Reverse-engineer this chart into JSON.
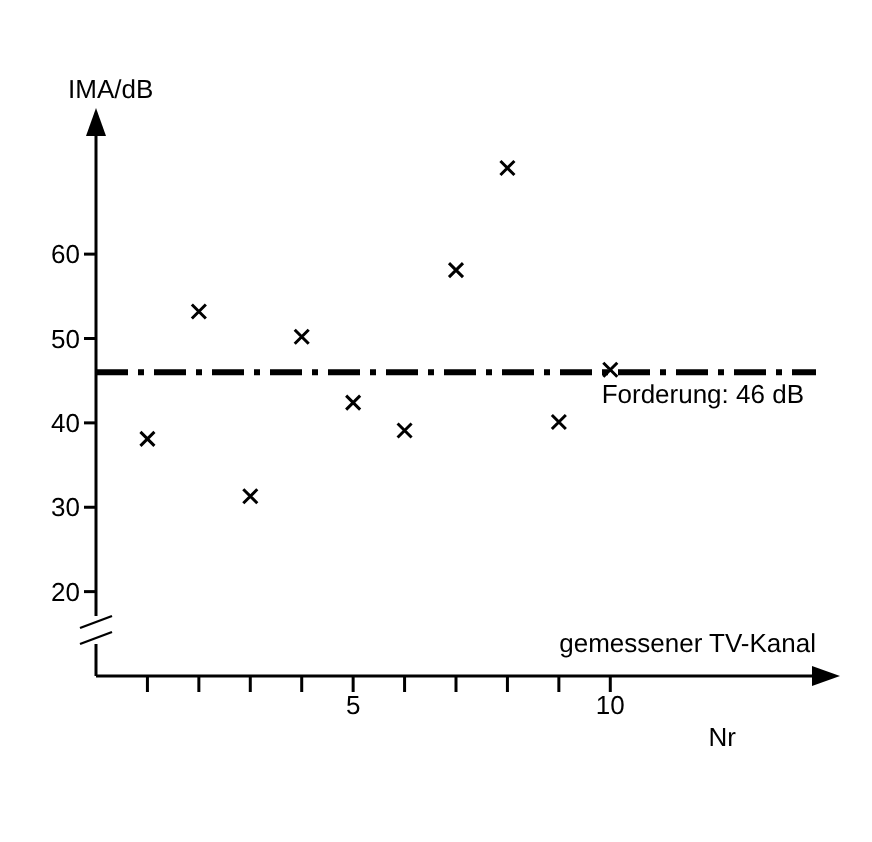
{
  "chart_data": {
    "type": "scatter",
    "ylabel": "IMA/dB",
    "xlabel": "Nr",
    "annotations": [
      "gemessener TV-Kanal"
    ],
    "x": [
      1,
      2,
      3,
      4,
      5,
      6,
      7,
      8,
      9,
      10
    ],
    "series": [
      {
        "color": "#000000",
        "values": [
          38.1,
          53.2,
          31.3,
          50.2,
          42.4,
          39.1,
          58.1,
          70.2,
          40.1,
          46.3
        ]
      }
    ],
    "xlim": [
      0,
      14
    ],
    "xticks": [
      {
        "value": 1,
        "label": null
      },
      {
        "value": 2,
        "label": null
      },
      {
        "value": 3,
        "label": null
      },
      {
        "value": 4,
        "label": null
      },
      5,
      {
        "value": 6,
        "label": null
      },
      {
        "value": 7,
        "label": null
      },
      {
        "value": 8,
        "label": null
      },
      {
        "value": 9,
        "label": null
      },
      10
    ],
    "ylim": [
      10,
      74
    ],
    "yticks": [
      20,
      30,
      40,
      50,
      60
    ],
    "ref_lines": [
      {
        "axis": "y",
        "value": 46,
        "label": "Forderung: 46 dB",
        "color": "#000000",
        "line_style": "dashed"
      }
    ],
    "marker": "cross",
    "grid": false,
    "legend": false
  }
}
